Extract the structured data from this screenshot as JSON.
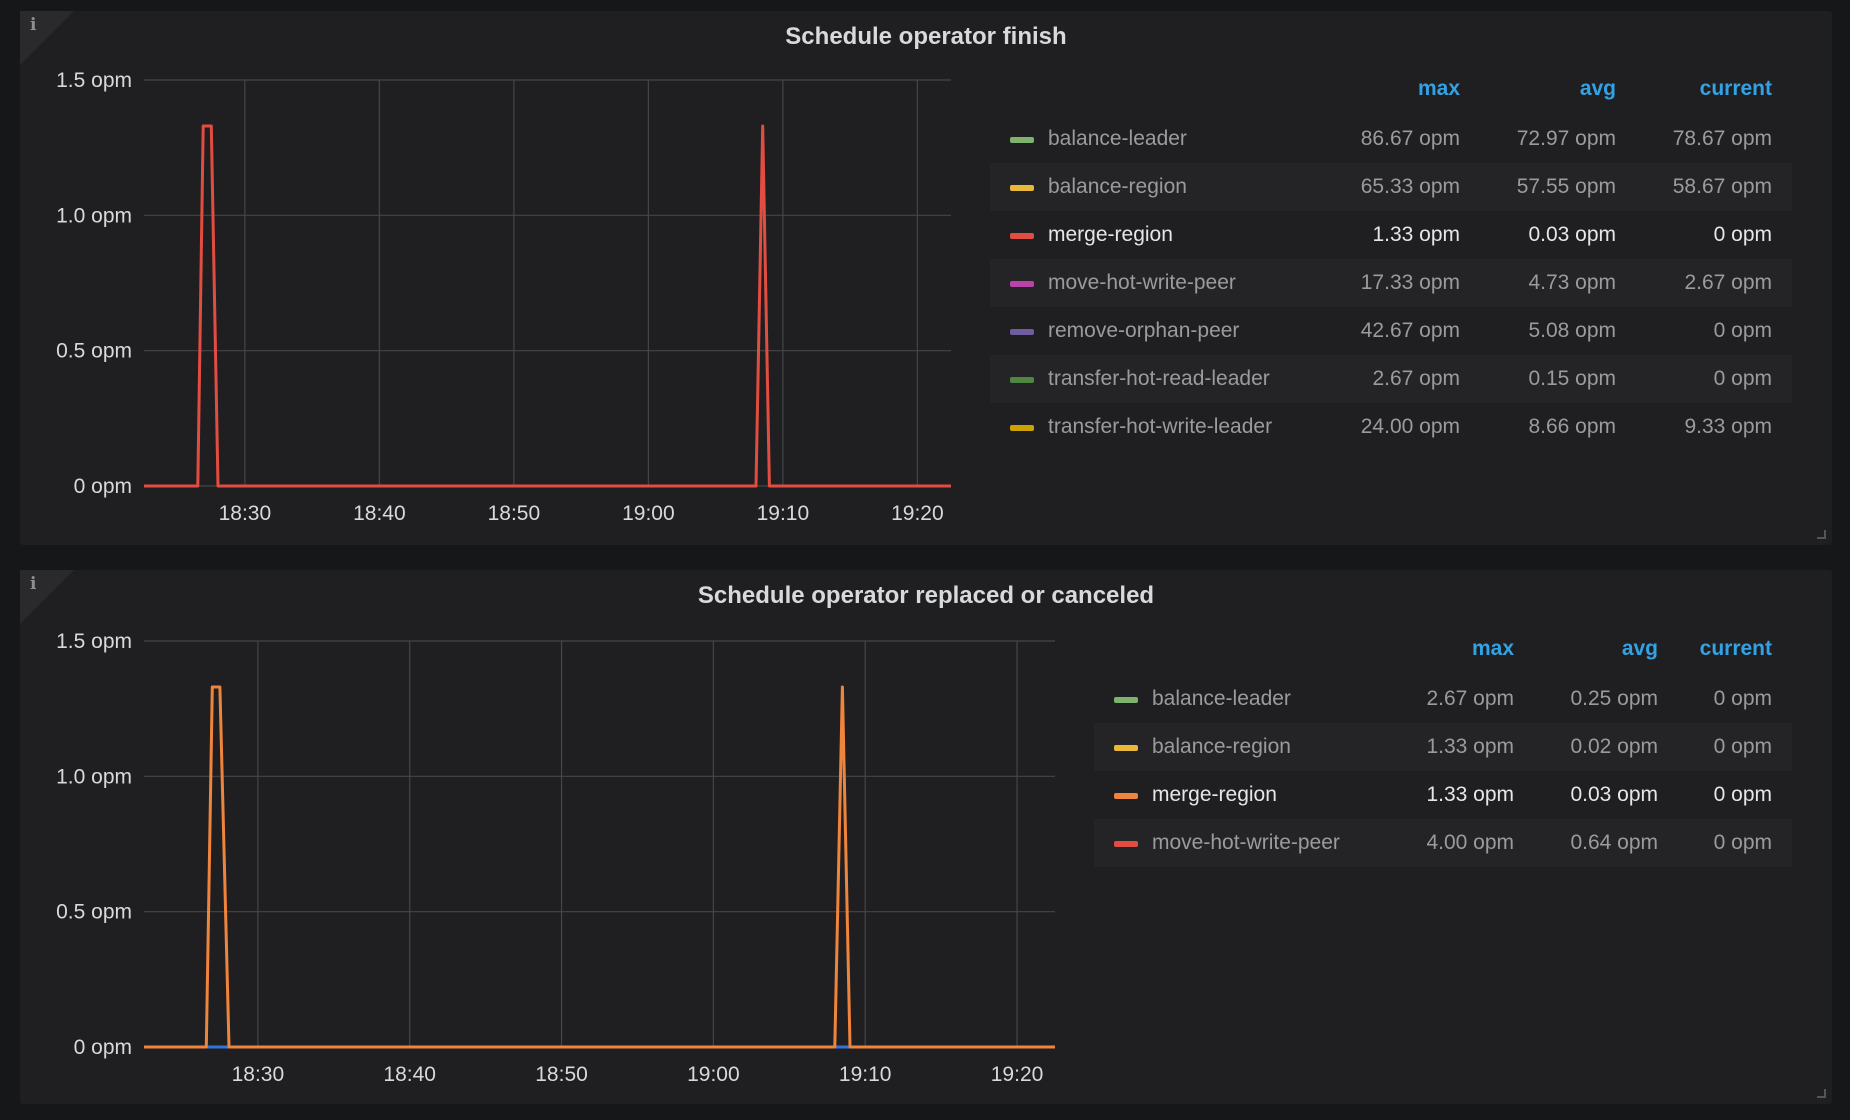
{
  "panels": [
    {
      "title": "Schedule operator finish",
      "info_icon": "info-icon",
      "legend": {
        "headers": {
          "max": "max",
          "avg": "avg",
          "current": "current"
        },
        "rows": [
          {
            "name": "balance-leader",
            "color": "#7eb26d",
            "max": "86.67 opm",
            "avg": "72.97 opm",
            "current": "78.67 opm",
            "active": false
          },
          {
            "name": "balance-region",
            "color": "#eab839",
            "max": "65.33 opm",
            "avg": "57.55 opm",
            "current": "58.67 opm",
            "active": false
          },
          {
            "name": "merge-region",
            "color": "#e24d42",
            "max": "1.33 opm",
            "avg": "0.03 opm",
            "current": "0 opm",
            "active": true
          },
          {
            "name": "move-hot-write-peer",
            "color": "#ba43a9",
            "max": "17.33 opm",
            "avg": "4.73 opm",
            "current": "2.67 opm",
            "active": false
          },
          {
            "name": "remove-orphan-peer",
            "color": "#705da0",
            "max": "42.67 opm",
            "avg": "5.08 opm",
            "current": "0 opm",
            "active": false
          },
          {
            "name": "transfer-hot-read-leader",
            "color": "#508642",
            "max": "2.67 opm",
            "avg": "0.15 opm",
            "current": "0 opm",
            "active": false
          },
          {
            "name": "transfer-hot-write-leader",
            "color": "#cca300",
            "max": "24.00 opm",
            "avg": "8.66 opm",
            "current": "9.33 opm",
            "active": false
          }
        ]
      }
    },
    {
      "title": "Schedule operator replaced or canceled",
      "info_icon": "info-icon",
      "legend": {
        "headers": {
          "max": "max",
          "avg": "avg",
          "current": "current"
        },
        "rows": [
          {
            "name": "balance-leader",
            "color": "#7eb26d",
            "max": "2.67 opm",
            "avg": "0.25 opm",
            "current": "0 opm",
            "active": false
          },
          {
            "name": "balance-region",
            "color": "#eab839",
            "max": "1.33 opm",
            "avg": "0.02 opm",
            "current": "0 opm",
            "active": false
          },
          {
            "name": "merge-region",
            "color": "#ef843c",
            "max": "1.33 opm",
            "avg": "0.03 opm",
            "current": "0 opm",
            "active": true
          },
          {
            "name": "move-hot-write-peer",
            "color": "#e24d42",
            "max": "4.00 opm",
            "avg": "0.64 opm",
            "current": "0 opm",
            "active": false
          }
        ]
      }
    }
  ],
  "chart_data": [
    {
      "type": "line",
      "title": "Schedule operator finish",
      "xlim": [
        "18:22:30",
        "19:22:30"
      ],
      "ylim": [
        0,
        1.5
      ],
      "x_ticks": [
        "18:30",
        "18:40",
        "18:50",
        "19:00",
        "19:10",
        "19:20"
      ],
      "y_ticks": [
        {
          "v": 0,
          "label": "0 opm"
        },
        {
          "v": 0.5,
          "label": "0.5 opm"
        },
        {
          "v": 1.0,
          "label": "1.0 opm"
        },
        {
          "v": 1.5,
          "label": "1.5 opm"
        }
      ],
      "grid": true,
      "legend_placement": "right",
      "series": [
        {
          "name": "merge-region",
          "color": "#e24d42",
          "points": [
            [
              "18:22:30",
              0
            ],
            [
              "18:26:30",
              0
            ],
            [
              "18:26:54",
              1.33
            ],
            [
              "18:27:30",
              1.33
            ],
            [
              "18:28:00",
              0
            ],
            [
              "19:08:00",
              0
            ],
            [
              "19:08:30",
              1.33
            ],
            [
              "19:09:00",
              0
            ],
            [
              "19:22:30",
              0
            ]
          ]
        }
      ]
    },
    {
      "type": "line",
      "title": "Schedule operator replaced or canceled",
      "xlim": [
        "18:22:30",
        "19:22:30"
      ],
      "ylim": [
        0,
        1.5
      ],
      "x_ticks": [
        "18:30",
        "18:40",
        "18:50",
        "19:00",
        "19:10",
        "19:20"
      ],
      "y_ticks": [
        {
          "v": 0,
          "label": "0 opm"
        },
        {
          "v": 0.5,
          "label": "0.5 opm"
        },
        {
          "v": 1.0,
          "label": "1.0 opm"
        },
        {
          "v": 1.5,
          "label": "1.5 opm"
        }
      ],
      "grid": true,
      "legend_placement": "right",
      "series": [
        {
          "color": "#3274d9",
          "points": [
            [
              "18:22:30",
              0
            ],
            [
              "19:22:30",
              0
            ]
          ]
        },
        {
          "name": "merge-region",
          "color": "#ef843c",
          "points": [
            [
              "18:22:30",
              0
            ],
            [
              "18:26:36",
              0
            ],
            [
              "18:27:00",
              1.33
            ],
            [
              "18:27:30",
              1.33
            ],
            [
              "18:28:06",
              0
            ],
            [
              "19:08:00",
              0
            ],
            [
              "19:08:30",
              1.33
            ],
            [
              "19:09:00",
              0
            ],
            [
              "19:22:30",
              0
            ]
          ]
        }
      ]
    }
  ]
}
